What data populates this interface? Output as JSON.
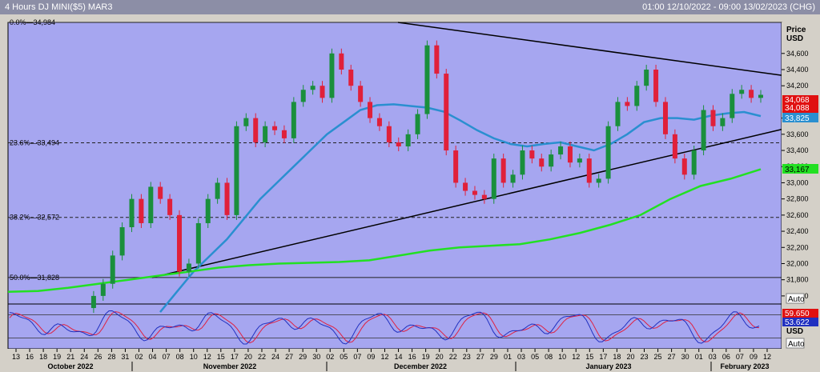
{
  "window": {
    "title": "4 Hours DJ MINI($5) MAR3",
    "range": "01:00 12/10/2022 - 09:00 13/02/2023 (CHG)"
  },
  "colors": {
    "plot_bg": "#a6a6f0",
    "candle_up": "#1a8f3c",
    "candle_down": "#e0203a",
    "ma_blue": "#2a8fd0",
    "ma_green": "#22e022",
    "stoch_k": "#2030c0",
    "stoch_d": "#e02040"
  },
  "price_axis": {
    "title_line1": "Price",
    "title_line2": "USD",
    "ticks": [
      "34,600",
      "34,400",
      "34,200",
      "33,800",
      "33,600",
      "33,400",
      "33,200",
      "33,000",
      "32,800",
      "32,600",
      "32,400",
      "32,200",
      "32,000",
      "31,800",
      "31,600"
    ],
    "tick_values": [
      34600,
      34400,
      34200,
      33800,
      33600,
      33400,
      33200,
      33000,
      32800,
      32600,
      32400,
      32200,
      32000,
      31800,
      31600
    ],
    "auto_label": "Auto"
  },
  "badges": {
    "last_red": "34,068",
    "last_red2": "34,088",
    "ma_blue": "33,825",
    "ma_green": "33,167"
  },
  "fib_levels": [
    {
      "label": "0.0%—34,984",
      "value": 34984,
      "style": "solid"
    },
    {
      "label": "23.6%—33,494",
      "value": 33494,
      "style": "dashed"
    },
    {
      "label": "38.2%—32,572",
      "value": 32572,
      "style": "dashed"
    },
    {
      "label": "50.0%—31,828",
      "value": 31828,
      "style": "solid"
    }
  ],
  "oscillator": {
    "badge_red": "59.650",
    "badge_blue": "53.622",
    "unit": "USD",
    "auto_label": "Auto"
  },
  "x_axis": {
    "days": [
      "13",
      "16",
      "18",
      "19",
      "21",
      "24",
      "26",
      "28",
      "31",
      "02",
      "04",
      "07",
      "08",
      "10",
      "12",
      "15",
      "17",
      "20",
      "22",
      "24",
      "27",
      "29",
      "30",
      "02",
      "05",
      "07",
      "09",
      "12",
      "14",
      "16",
      "19",
      "20",
      "22",
      "23",
      "27",
      "29",
      "01",
      "03",
      "05",
      "08",
      "10",
      "12",
      "15",
      "17",
      "18",
      "20",
      "23",
      "25",
      "27",
      "30",
      "01",
      "03",
      "06",
      "07",
      "09",
      "12"
    ],
    "months": [
      "October 2022",
      "November 2022",
      "December 2022",
      "January 2023",
      "February 2023"
    ]
  },
  "chart_data": {
    "type": "candlestick",
    "title": "4 Hours DJ MINI($5) MAR3",
    "ylabel": "Price USD",
    "ylim": [
      31500,
      34984
    ],
    "x_range": [
      "12/10/2022 01:00",
      "13/02/2023 09:00"
    ],
    "series": [
      {
        "name": "Close",
        "values": [
          31450,
          31600,
          31750,
          32100,
          32450,
          32800,
          32500,
          32950,
          32800,
          32600,
          31900,
          32000,
          32500,
          32800,
          33000,
          32600,
          33700,
          33800,
          33500,
          33700,
          33650,
          33550,
          34000,
          34150,
          34200,
          34050,
          34600,
          34400,
          34200,
          34000,
          33800,
          33700,
          33500,
          33450,
          33600,
          33850,
          34700,
          34350,
          33400,
          33000,
          32900,
          32850,
          32800,
          33300,
          33000,
          33100,
          33400,
          33300,
          33200,
          33350,
          33450,
          33250,
          33300,
          33000,
          33050,
          33700,
          34000,
          33950,
          34200,
          34400,
          34000,
          33600,
          33300,
          33100,
          33400,
          33900,
          33700,
          33800,
          34100,
          34150,
          34050,
          34088
        ]
      },
      {
        "name": "Blue moving average",
        "values": [
          31400,
          31650,
          31900,
          32100,
          32300,
          32550,
          32800,
          33000,
          33200,
          33400,
          33600,
          33750,
          33900,
          33960,
          33970,
          33950,
          33930,
          33880,
          33770,
          33650,
          33550,
          33480,
          33450,
          33480,
          33500,
          33450,
          33400,
          33480,
          33600,
          33750,
          33800,
          33800,
          33780,
          33830,
          33860,
          33875,
          33825
        ]
      },
      {
        "name": "Green moving average",
        "values": [
          31650,
          31660,
          31700,
          31750,
          31800,
          31850,
          31900,
          31950,
          31980,
          32000,
          32010,
          32020,
          32040,
          32100,
          32160,
          32200,
          32220,
          32240,
          32300,
          32380,
          32480,
          32600,
          32800,
          32960,
          33050,
          33167
        ]
      }
    ],
    "trendlines": [
      {
        "name": "upper",
        "from": [
          13,
          34984
        ],
        "to": [
          56,
          34320
        ]
      },
      {
        "name": "lower",
        "from": [
          4,
          31828
        ],
        "to": [
          56,
          33680
        ]
      }
    ],
    "oscillator_range": [
      0,
      100
    ],
    "oscillator_last": {
      "k": 53.622,
      "d": 59.65
    }
  }
}
